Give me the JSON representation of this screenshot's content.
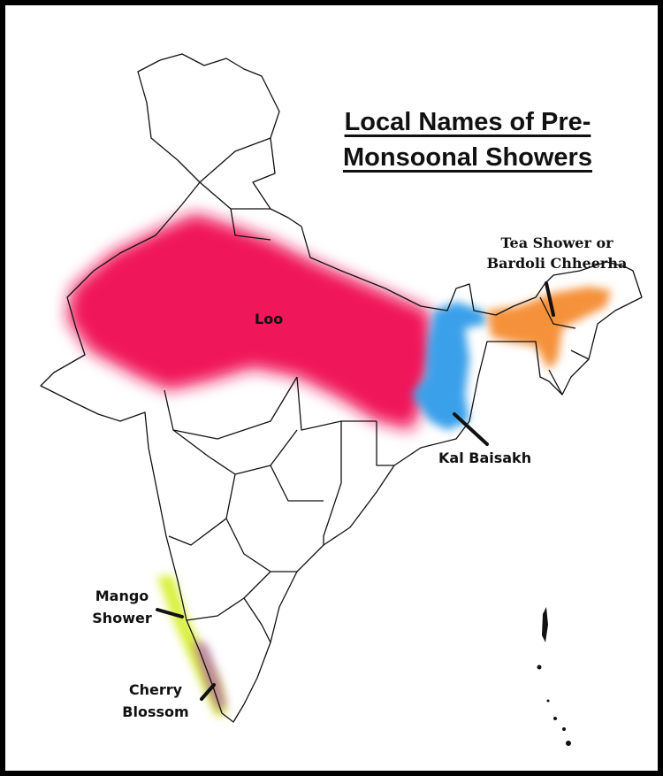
{
  "title": {
    "line1": "Local Names of Pre-",
    "line2": "Monsoonal Showers"
  },
  "regions": [
    {
      "name": "Loo",
      "color": "#f0165a"
    },
    {
      "name": "Kal Baisakh",
      "color": "#3aa0ea"
    },
    {
      "name": "Tea Shower or Bardoli Chheerha",
      "line1": "Tea Shower or",
      "line2": "Bardoli Chheerha",
      "color": "#f5913a"
    },
    {
      "name": "Mango Shower",
      "line1": "Mango",
      "line2": "Shower",
      "color": "#d8f03a"
    },
    {
      "name": "Cherry Blossom",
      "line1": "Cherry",
      "line2": "Blossom",
      "color": "#b060b0"
    }
  ]
}
